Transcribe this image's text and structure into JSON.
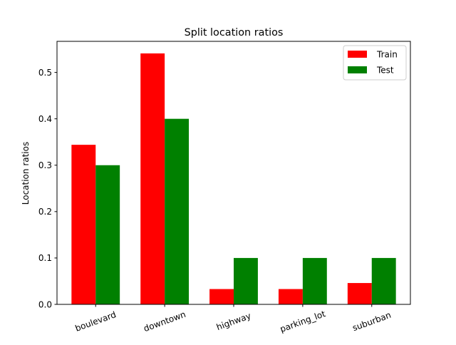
{
  "chart_data": {
    "type": "bar",
    "title": "Split location ratios",
    "xlabel": "",
    "ylabel": "Location ratios",
    "categories": [
      "boulevard",
      "downtown",
      "highway",
      "parking_lot",
      "suburban"
    ],
    "series": [
      {
        "name": "Train",
        "color": "#ff0000",
        "values": [
          0.344,
          0.541,
          0.033,
          0.033,
          0.046
        ]
      },
      {
        "name": "Test",
        "color": "#008000",
        "values": [
          0.3,
          0.4,
          0.1,
          0.1,
          0.1
        ]
      }
    ],
    "ylim": [
      0,
      0.567
    ],
    "yticks": [
      0.0,
      0.1,
      0.2,
      0.3,
      0.4,
      0.5
    ],
    "ytick_labels": [
      "0.0",
      "0.1",
      "0.2",
      "0.3",
      "0.4",
      "0.5"
    ],
    "grid": false,
    "legend_position": "top-right",
    "xtick_rotation_deg": 20
  }
}
